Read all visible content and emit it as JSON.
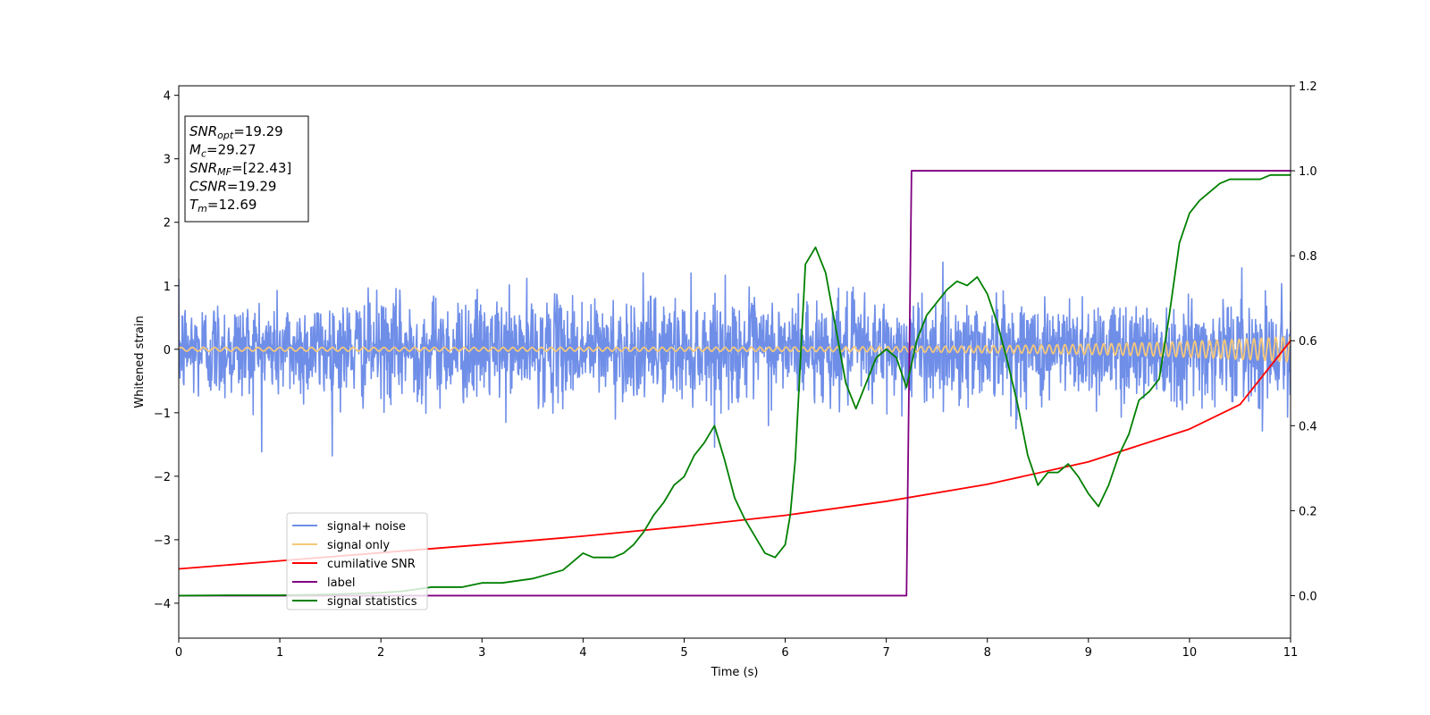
{
  "chart_data": {
    "type": "line",
    "xlabel": "Time (s)",
    "ylabel": "Whitened strain",
    "xlim": [
      0,
      11
    ],
    "ylim": [
      -4.55,
      4.15
    ],
    "y2lim": [
      -0.1,
      1.2
    ],
    "x_ticks": [
      0,
      1,
      2,
      3,
      4,
      5,
      6,
      7,
      8,
      9,
      10,
      11
    ],
    "y_ticks": [
      -4,
      -3,
      -2,
      -1,
      0,
      1,
      2,
      3,
      4
    ],
    "y2_ticks": [
      0.0,
      0.2,
      0.4,
      0.6,
      0.8,
      1.0,
      1.2
    ],
    "x_tick_labels": [
      "0",
      "1",
      "2",
      "3",
      "4",
      "5",
      "6",
      "7",
      "8",
      "9",
      "10",
      "11"
    ],
    "y_tick_labels": [
      "−4",
      "−3",
      "−2",
      "−1",
      "0",
      "1",
      "2",
      "3",
      "4"
    ],
    "y2_tick_labels": [
      "0.0",
      "0.2",
      "0.4",
      "0.6",
      "0.8",
      "1.0",
      "1.2"
    ],
    "legend_placement": "lower-left",
    "grid": false,
    "annotation": [
      {
        "var": "SNR",
        "sub": "opt",
        "value": "=19.29"
      },
      {
        "var": "M",
        "sub": "c",
        "value": "=29.27"
      },
      {
        "var": "SNR",
        "sub": "MF",
        "value": "=[22.43]"
      },
      {
        "var": "CSNR",
        "sub": "",
        "value": "=19.29"
      },
      {
        "var": "T",
        "sub": "m",
        "value": "=12.69"
      }
    ],
    "series": [
      {
        "name": "signal+ noise",
        "axis": "left",
        "color": "#6f8ee8",
        "style": "noise",
        "noise_std": 0.4,
        "noise_max_abs": 1.85
      },
      {
        "name": "signal only",
        "axis": "left",
        "color": "#f5c879",
        "style": "chirp",
        "amplitude_start": 0.03,
        "amplitude_end": 0.2
      },
      {
        "name": "cumilative SNR",
        "axis": "right",
        "color": "#ff0000",
        "style": "line",
        "x": [
          0,
          1,
          2,
          3,
          4,
          5,
          6,
          7,
          8,
          9,
          10,
          10.5,
          11
        ],
        "y": [
          0.063,
          0.082,
          0.101,
          0.12,
          0.14,
          0.163,
          0.189,
          0.222,
          0.262,
          0.315,
          0.392,
          0.45,
          0.6
        ]
      },
      {
        "name": "label",
        "axis": "right",
        "color": "#800080",
        "style": "line",
        "x": [
          0,
          7.2,
          7.25,
          11
        ],
        "y": [
          0.0,
          0.0,
          1.0,
          1.0
        ]
      },
      {
        "name": "signal statistics",
        "axis": "right",
        "color": "#008000",
        "style": "line",
        "x": [
          0,
          0.5,
          1.0,
          1.5,
          2.0,
          2.2,
          2.5,
          2.8,
          3.0,
          3.2,
          3.5,
          3.8,
          3.9,
          4.0,
          4.1,
          4.2,
          4.3,
          4.4,
          4.5,
          4.6,
          4.7,
          4.8,
          4.9,
          5.0,
          5.1,
          5.2,
          5.3,
          5.4,
          5.5,
          5.6,
          5.7,
          5.8,
          5.9,
          6.0,
          6.05,
          6.1,
          6.2,
          6.3,
          6.4,
          6.5,
          6.6,
          6.7,
          6.8,
          6.9,
          7.0,
          7.1,
          7.2,
          7.3,
          7.4,
          7.5,
          7.6,
          7.7,
          7.8,
          7.9,
          8.0,
          8.1,
          8.2,
          8.3,
          8.4,
          8.5,
          8.6,
          8.7,
          8.8,
          8.9,
          9.0,
          9.1,
          9.2,
          9.3,
          9.4,
          9.5,
          9.6,
          9.7,
          9.8,
          9.9,
          10.0,
          10.1,
          10.2,
          10.3,
          10.4,
          10.5,
          10.6,
          10.7,
          10.8,
          10.9,
          11.0
        ],
        "y": [
          0.0,
          0.001,
          0.001,
          0.003,
          0.007,
          0.01,
          0.02,
          0.02,
          0.03,
          0.03,
          0.04,
          0.06,
          0.08,
          0.1,
          0.09,
          0.09,
          0.09,
          0.1,
          0.12,
          0.15,
          0.19,
          0.22,
          0.26,
          0.28,
          0.33,
          0.36,
          0.4,
          0.32,
          0.23,
          0.18,
          0.14,
          0.1,
          0.09,
          0.12,
          0.19,
          0.32,
          0.78,
          0.82,
          0.76,
          0.63,
          0.5,
          0.44,
          0.5,
          0.56,
          0.58,
          0.56,
          0.49,
          0.6,
          0.66,
          0.69,
          0.72,
          0.74,
          0.73,
          0.75,
          0.71,
          0.64,
          0.55,
          0.45,
          0.33,
          0.26,
          0.29,
          0.29,
          0.31,
          0.28,
          0.24,
          0.21,
          0.26,
          0.33,
          0.38,
          0.46,
          0.48,
          0.51,
          0.66,
          0.83,
          0.9,
          0.93,
          0.95,
          0.97,
          0.98,
          0.98,
          0.98,
          0.98,
          0.99,
          0.99,
          0.99
        ]
      }
    ]
  }
}
